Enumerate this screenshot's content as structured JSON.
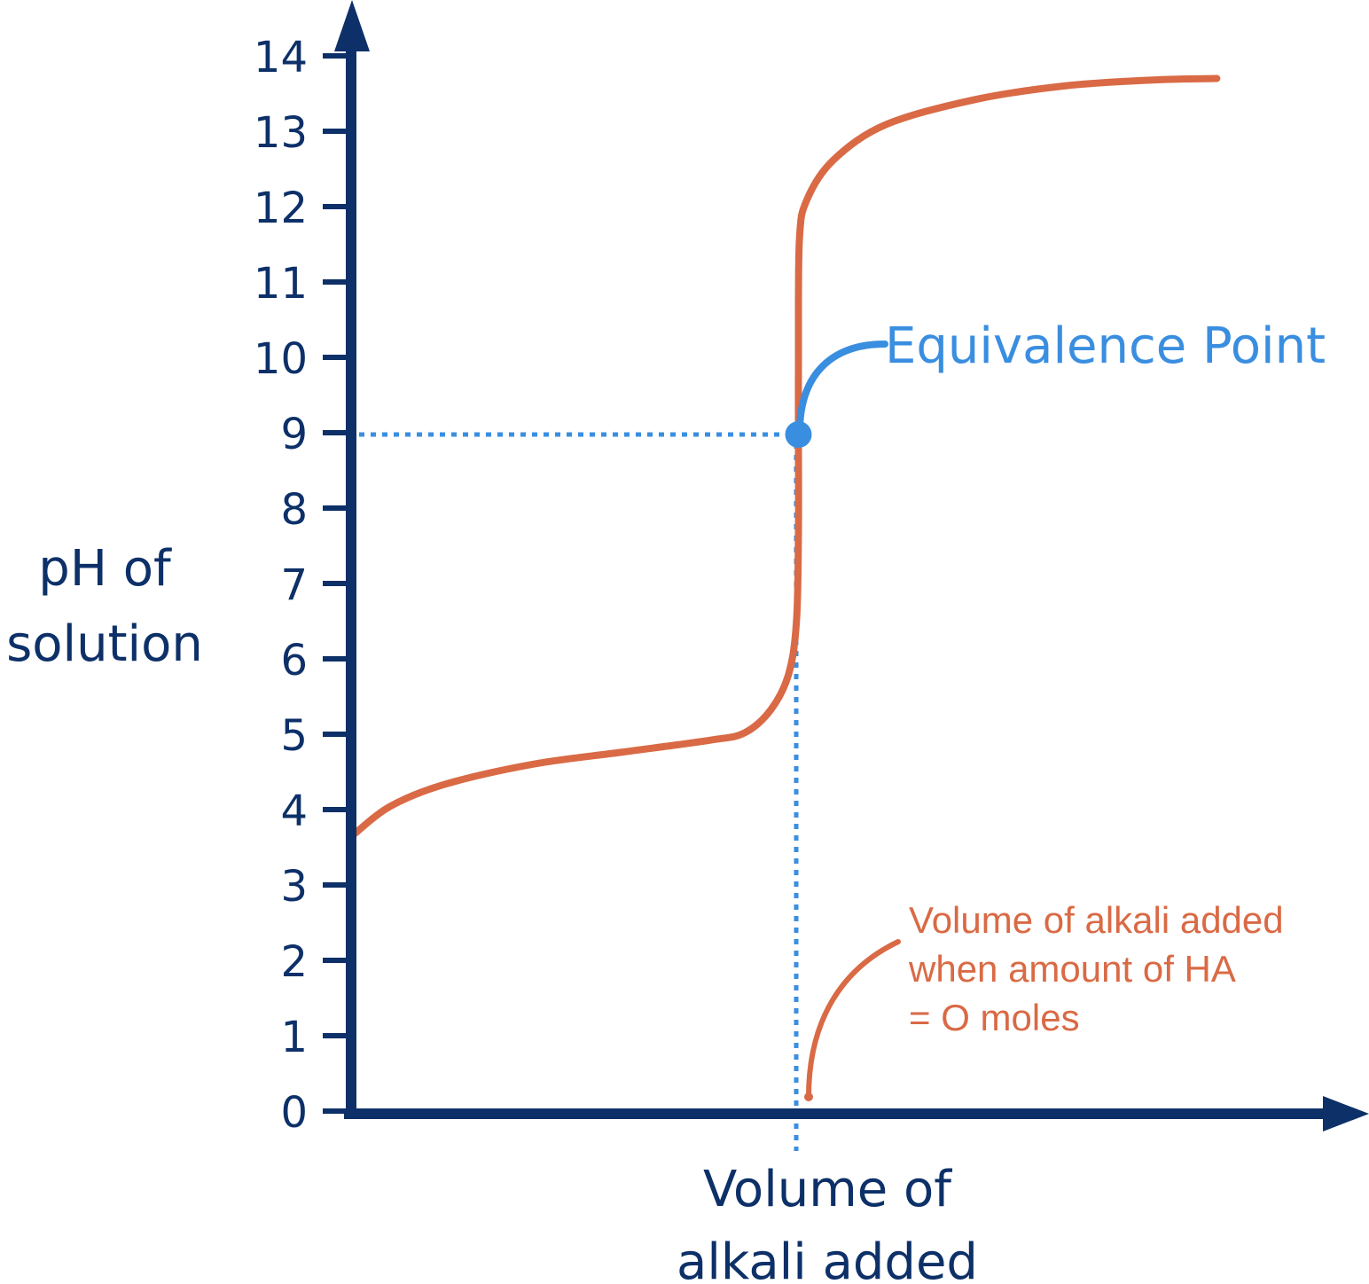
{
  "chart_data": {
    "type": "line",
    "title": "",
    "xlabel": [
      "Volume of",
      "alkali added"
    ],
    "ylabel": [
      "pH of",
      "solution"
    ],
    "ylim": [
      0,
      14
    ],
    "xlim": [
      0,
      100
    ],
    "yticks": [
      0,
      1,
      2,
      3,
      4,
      5,
      6,
      7,
      8,
      9,
      10,
      11,
      12,
      13,
      14
    ],
    "xticks": [],
    "grid": false,
    "series": [
      {
        "color": "#d96a45",
        "x": [
          0,
          3.6,
          9.1,
          18.2,
          27.3,
          36.4,
          40,
          42.7,
          44.5,
          45.3,
          45.5,
          45.5,
          45.5,
          45.6,
          46.4,
          49.1,
          54.5,
          63.6,
          72.7,
          81.8,
          88.4
        ],
        "y": [
          3.68,
          4.04,
          4.33,
          4.6,
          4.76,
          4.92,
          5.02,
          5.33,
          5.8,
          6.5,
          7.68,
          8.95,
          10.0,
          11.56,
          12.1,
          12.62,
          13.09,
          13.42,
          13.6,
          13.68,
          13.7
        ]
      }
    ],
    "equivalence_point": {
      "x": 45.5,
      "y": 9,
      "label": "Equivalence Point",
      "color": "#3a8ee0"
    },
    "annotations": [
      {
        "lines": [
          "Volume of alkali added",
          "when amount of HA",
          "= O moles"
        ],
        "color": "#d96a45"
      }
    ],
    "axis_color": "#0d3068"
  }
}
